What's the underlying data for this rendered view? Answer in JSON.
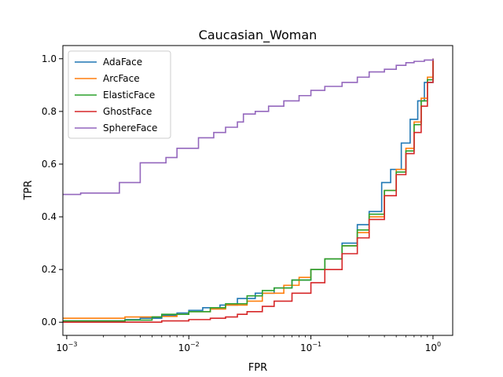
{
  "chart_data": {
    "type": "line",
    "title": "Caucasian_Woman",
    "xlabel": "FPR",
    "ylabel": "TPR",
    "xscale": "log",
    "xlim": [
      0.00093,
      1.45
    ],
    "ylim": [
      -0.05,
      1.05
    ],
    "xticks": [
      {
        "value": 0.001,
        "base": "10",
        "exp": "−3"
      },
      {
        "value": 0.01,
        "base": "10",
        "exp": "−2"
      },
      {
        "value": 0.1,
        "base": "10",
        "exp": "−1"
      },
      {
        "value": 1,
        "base": "10",
        "exp": "0"
      }
    ],
    "yticks": [
      "0.0",
      "0.2",
      "0.4",
      "0.6",
      "0.8",
      "1.0"
    ],
    "grid": false,
    "legend": "top-left",
    "series": [
      {
        "name": "AdaFace",
        "color": "#1f77b4",
        "points": [
          [
            0.00093,
            0.005
          ],
          [
            0.003,
            0.01
          ],
          [
            0.004,
            0.015
          ],
          [
            0.006,
            0.025
          ],
          [
            0.008,
            0.035
          ],
          [
            0.01,
            0.045
          ],
          [
            0.013,
            0.055
          ],
          [
            0.018,
            0.065
          ],
          [
            0.025,
            0.09
          ],
          [
            0.035,
            0.11
          ],
          [
            0.05,
            0.13
          ],
          [
            0.07,
            0.16
          ],
          [
            0.1,
            0.2
          ],
          [
            0.13,
            0.24
          ],
          [
            0.18,
            0.3
          ],
          [
            0.24,
            0.37
          ],
          [
            0.3,
            0.42
          ],
          [
            0.38,
            0.53
          ],
          [
            0.45,
            0.58
          ],
          [
            0.55,
            0.68
          ],
          [
            0.65,
            0.77
          ],
          [
            0.75,
            0.84
          ],
          [
            0.85,
            0.91
          ],
          [
            1.0,
            1.0
          ]
        ]
      },
      {
        "name": "ArcFace",
        "color": "#ff7f0e",
        "points": [
          [
            0.00093,
            0.015
          ],
          [
            0.003,
            0.02
          ],
          [
            0.006,
            0.022
          ],
          [
            0.008,
            0.03
          ],
          [
            0.01,
            0.04
          ],
          [
            0.015,
            0.05
          ],
          [
            0.02,
            0.065
          ],
          [
            0.03,
            0.08
          ],
          [
            0.04,
            0.11
          ],
          [
            0.06,
            0.14
          ],
          [
            0.08,
            0.17
          ],
          [
            0.1,
            0.2
          ],
          [
            0.13,
            0.24
          ],
          [
            0.18,
            0.29
          ],
          [
            0.24,
            0.34
          ],
          [
            0.3,
            0.4
          ],
          [
            0.4,
            0.5
          ],
          [
            0.5,
            0.58
          ],
          [
            0.6,
            0.66
          ],
          [
            0.7,
            0.76
          ],
          [
            0.8,
            0.85
          ],
          [
            0.9,
            0.93
          ],
          [
            1.0,
            1.0
          ]
        ]
      },
      {
        "name": "ElasticFace",
        "color": "#2ca02c",
        "points": [
          [
            0.00093,
            0.005
          ],
          [
            0.003,
            0.008
          ],
          [
            0.005,
            0.02
          ],
          [
            0.006,
            0.03
          ],
          [
            0.01,
            0.04
          ],
          [
            0.015,
            0.055
          ],
          [
            0.02,
            0.07
          ],
          [
            0.03,
            0.1
          ],
          [
            0.04,
            0.12
          ],
          [
            0.05,
            0.13
          ],
          [
            0.07,
            0.16
          ],
          [
            0.1,
            0.2
          ],
          [
            0.13,
            0.24
          ],
          [
            0.18,
            0.29
          ],
          [
            0.24,
            0.35
          ],
          [
            0.3,
            0.41
          ],
          [
            0.4,
            0.5
          ],
          [
            0.5,
            0.57
          ],
          [
            0.6,
            0.65
          ],
          [
            0.7,
            0.75
          ],
          [
            0.8,
            0.84
          ],
          [
            0.9,
            0.92
          ],
          [
            1.0,
            1.0
          ]
        ]
      },
      {
        "name": "GhostFace",
        "color": "#d62728",
        "points": [
          [
            0.00093,
            0.0
          ],
          [
            0.003,
            0.0
          ],
          [
            0.006,
            0.005
          ],
          [
            0.01,
            0.01
          ],
          [
            0.015,
            0.015
          ],
          [
            0.02,
            0.02
          ],
          [
            0.025,
            0.03
          ],
          [
            0.03,
            0.04
          ],
          [
            0.04,
            0.06
          ],
          [
            0.05,
            0.08
          ],
          [
            0.07,
            0.11
          ],
          [
            0.1,
            0.15
          ],
          [
            0.13,
            0.2
          ],
          [
            0.18,
            0.26
          ],
          [
            0.24,
            0.32
          ],
          [
            0.3,
            0.39
          ],
          [
            0.4,
            0.48
          ],
          [
            0.5,
            0.56
          ],
          [
            0.6,
            0.64
          ],
          [
            0.7,
            0.72
          ],
          [
            0.8,
            0.82
          ],
          [
            0.9,
            0.91
          ],
          [
            1.0,
            1.0
          ]
        ]
      },
      {
        "name": "SphereFace",
        "color": "#9467bd",
        "points": [
          [
            0.00093,
            0.485
          ],
          [
            0.0013,
            0.49
          ],
          [
            0.0027,
            0.49
          ],
          [
            0.0027,
            0.53
          ],
          [
            0.004,
            0.53
          ],
          [
            0.004,
            0.605
          ],
          [
            0.0065,
            0.605
          ],
          [
            0.0065,
            0.625
          ],
          [
            0.008,
            0.625
          ],
          [
            0.008,
            0.66
          ],
          [
            0.012,
            0.66
          ],
          [
            0.012,
            0.7
          ],
          [
            0.016,
            0.7
          ],
          [
            0.016,
            0.72
          ],
          [
            0.02,
            0.74
          ],
          [
            0.025,
            0.76
          ],
          [
            0.028,
            0.79
          ],
          [
            0.035,
            0.8
          ],
          [
            0.045,
            0.82
          ],
          [
            0.06,
            0.84
          ],
          [
            0.08,
            0.86
          ],
          [
            0.1,
            0.88
          ],
          [
            0.13,
            0.895
          ],
          [
            0.18,
            0.91
          ],
          [
            0.24,
            0.93
          ],
          [
            0.3,
            0.95
          ],
          [
            0.4,
            0.96
          ],
          [
            0.5,
            0.975
          ],
          [
            0.6,
            0.985
          ],
          [
            0.7,
            0.99
          ],
          [
            0.85,
            0.995
          ],
          [
            1.0,
            1.0
          ]
        ]
      }
    ]
  }
}
